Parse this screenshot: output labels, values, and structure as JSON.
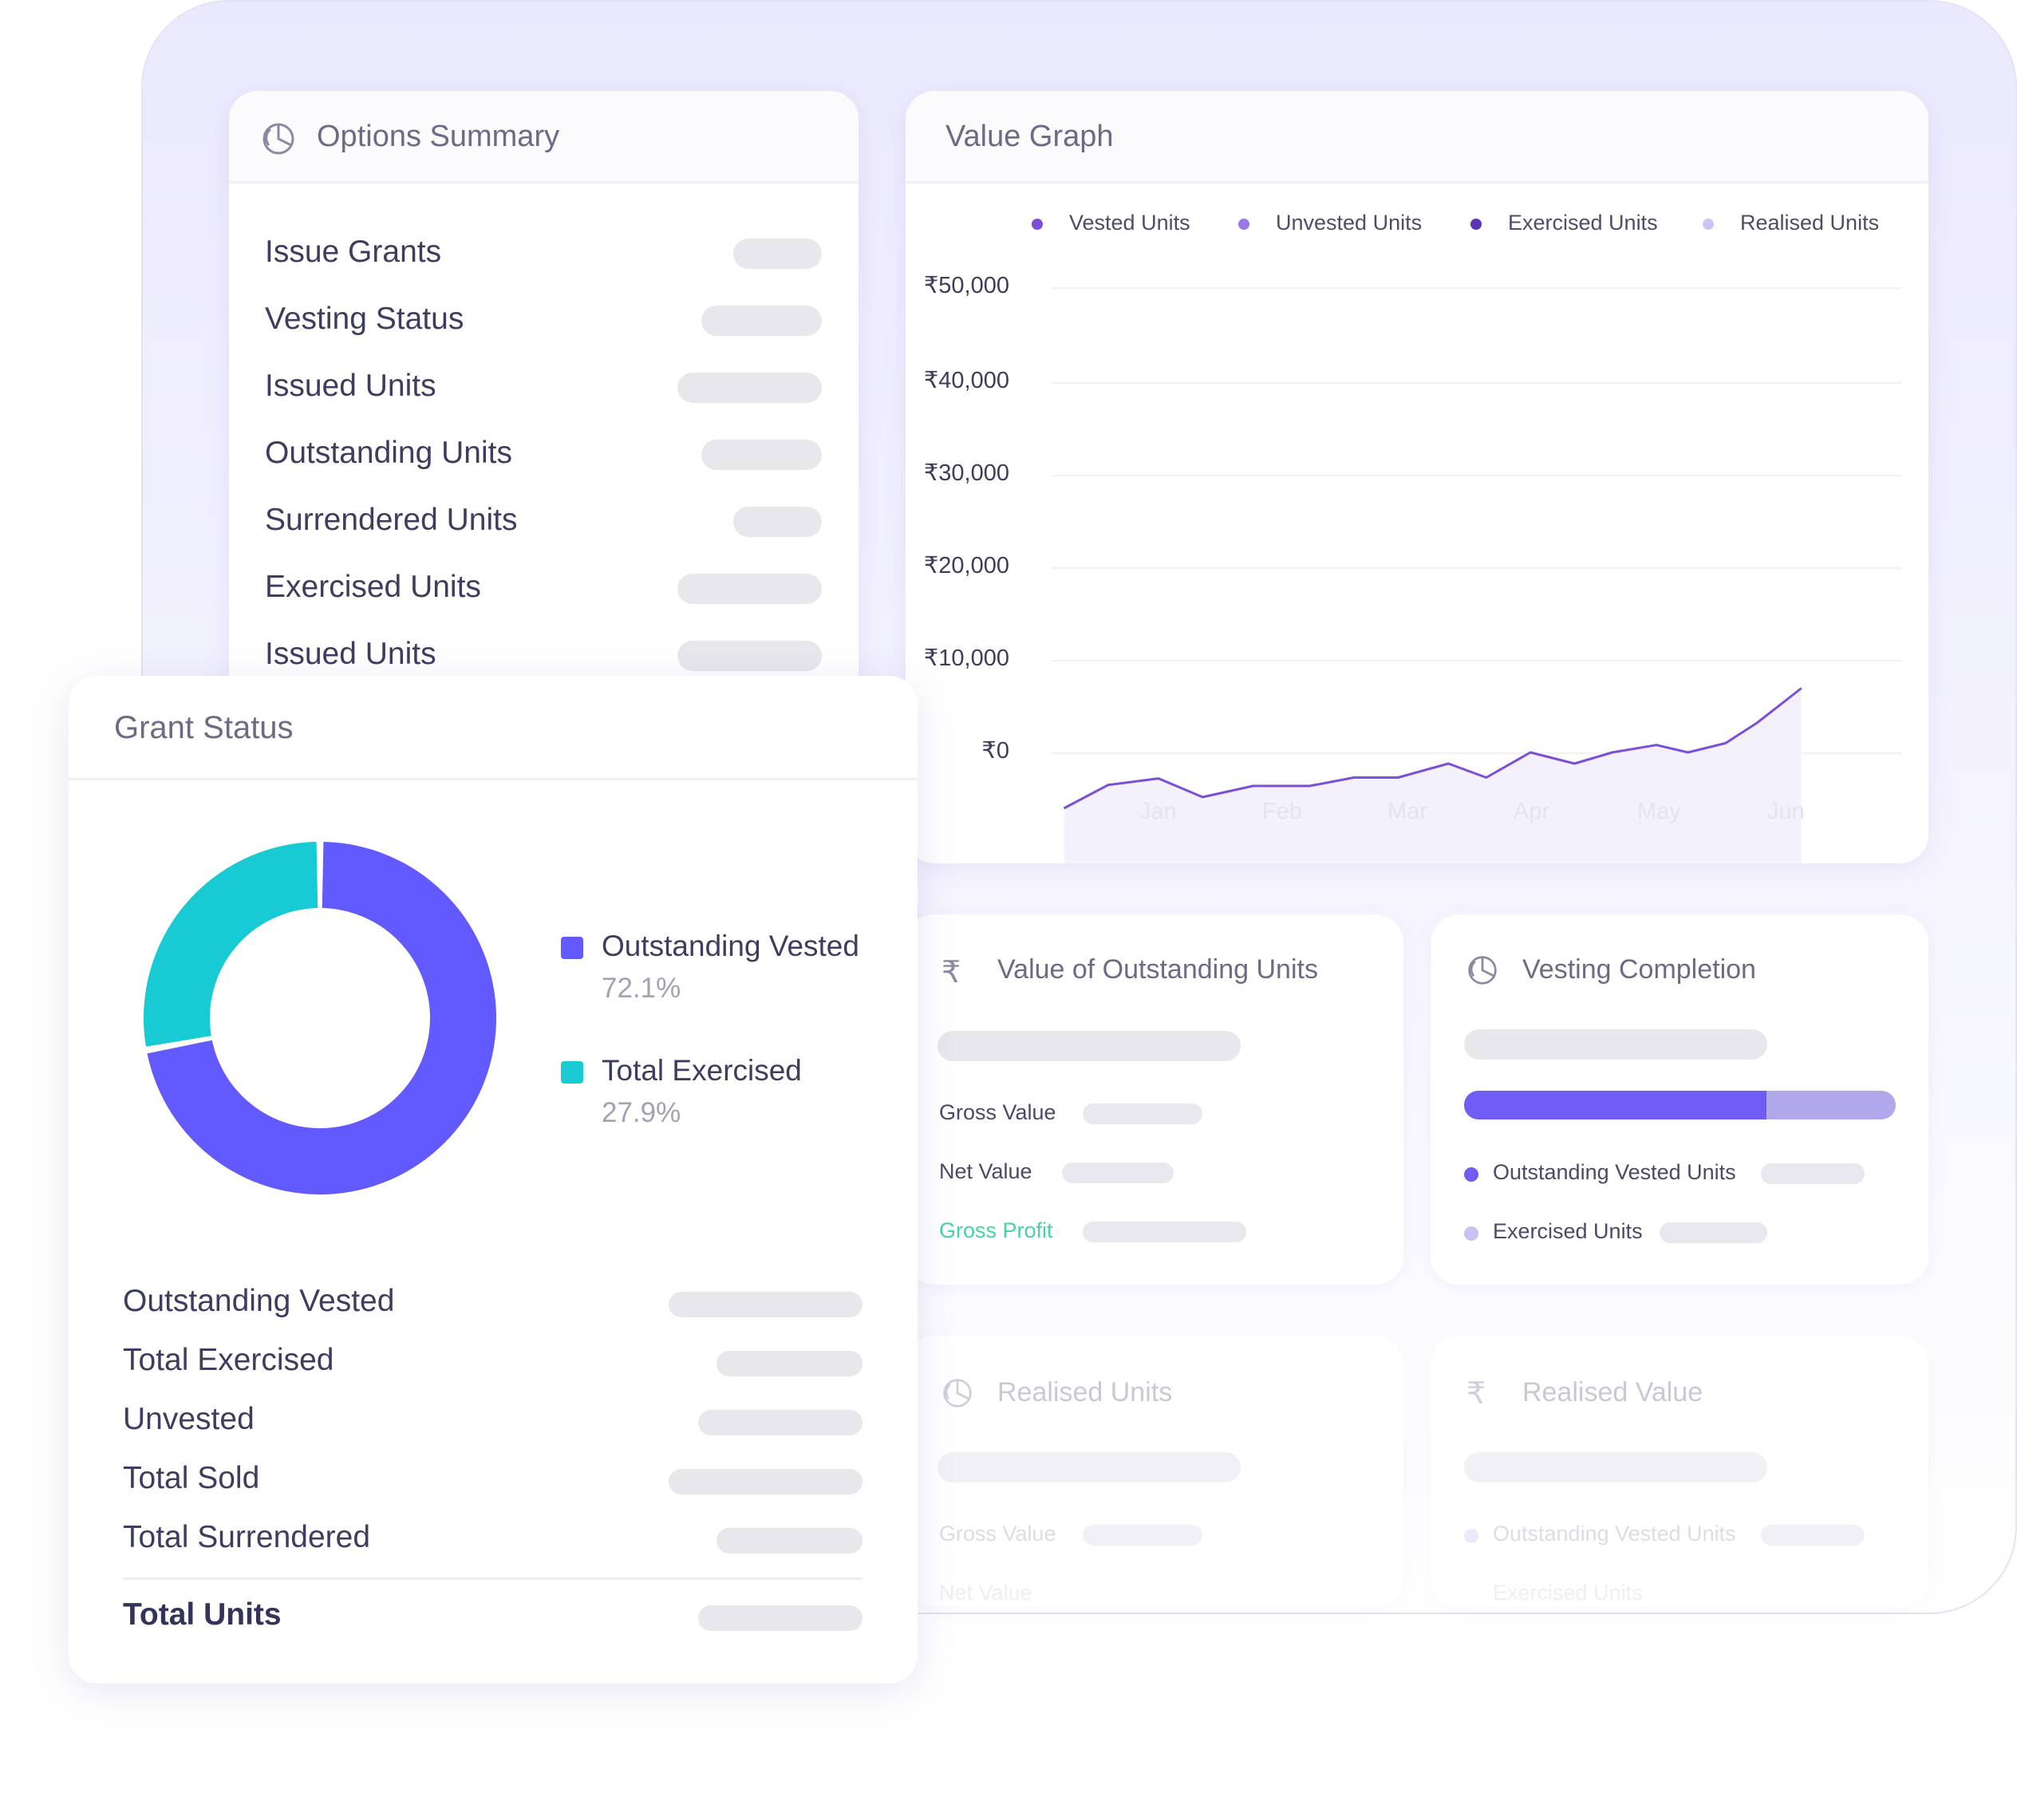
{
  "options_summary": {
    "title": "Options Summary",
    "icon": "pie-chart-icon",
    "rows": [
      {
        "label": "Issue Grants"
      },
      {
        "label": "Vesting Status"
      },
      {
        "label": "Issued Units"
      },
      {
        "label": "Outstanding Units"
      },
      {
        "label": "Surrendered Units"
      },
      {
        "label": "Exercised Units"
      },
      {
        "label": "Issued Units"
      }
    ]
  },
  "value_graph": {
    "title": "Value Graph",
    "legend": [
      {
        "name": "Vested Units",
        "color": "#7b4fd6"
      },
      {
        "name": "Unvested Units",
        "color": "#9a78e6"
      },
      {
        "name": "Exercised Units",
        "color": "#5b35b8"
      },
      {
        "name": "Realised Units",
        "color": "#d2c2f3"
      }
    ]
  },
  "chart_data": {
    "type": "area",
    "title": "Value Graph",
    "xlabel": "",
    "ylabel": "",
    "x_ticks": [
      "Jan",
      "Feb",
      "Mar",
      "Apr",
      "May",
      "Jun"
    ],
    "y_ticks": [
      "₹50,000",
      "₹40,000",
      "₹30,000",
      "₹20,000",
      "₹10,000",
      "₹0"
    ],
    "ylim": [
      0,
      50000
    ],
    "grid": true,
    "legend_position": "top",
    "series": [
      {
        "name": "Vested Units",
        "color": "#7b4fd6",
        "x": [
          0.25,
          0.6,
          1.0,
          1.35,
          1.75,
          2.2,
          2.55,
          2.9,
          3.3,
          3.6,
          3.95,
          4.3,
          4.6,
          4.95,
          5.2,
          5.5,
          5.75,
          6.1
        ],
        "values": [
          -6000,
          -3500,
          -2800,
          -4800,
          -3600,
          -3600,
          -2700,
          -2700,
          -1200,
          -2700,
          0,
          -1200,
          0,
          800,
          0,
          1000,
          3200,
          6900
        ]
      }
    ]
  },
  "grant_status": {
    "title": "Grant Status",
    "donut": [
      {
        "name": "Outstanding Vested",
        "percent": "72.1%",
        "value": 72.1,
        "color": "#6259ff"
      },
      {
        "name": "Total Exercised",
        "percent": "27.9%",
        "value": 27.9,
        "color": "#17cad3"
      }
    ],
    "rows": [
      {
        "label": "Outstanding Vested"
      },
      {
        "label": "Total Exercised"
      },
      {
        "label": "Unvested"
      },
      {
        "label": "Total Sold"
      },
      {
        "label": "Total Surrendered"
      }
    ],
    "total_label": "Total Units"
  },
  "value_outstanding": {
    "title": "Value of Outstanding Units",
    "icon": "rupee-icon",
    "rows": [
      {
        "label": "Gross Value",
        "color": "#4a4a66"
      },
      {
        "label": "Net Value",
        "color": "#4a4a66"
      },
      {
        "label": "Gross Profit",
        "color": "#46d3a0"
      }
    ]
  },
  "vesting_completion": {
    "title": "Vesting Completion",
    "icon": "pie-chart-icon",
    "progress": 0.7,
    "progress_color": "#6e5cf5",
    "remaining_color": "#b1a8ec",
    "legend": [
      {
        "label": "Outstanding Vested Units",
        "color": "#6e5cf5"
      },
      {
        "label": "Exercised Units",
        "color": "#c9c3f1"
      }
    ]
  },
  "realised_units": {
    "title": "Realised Units",
    "icon": "pie-chart-icon",
    "rows": [
      {
        "label": "Gross Value"
      },
      {
        "label": "Net Value"
      }
    ]
  },
  "realised_value": {
    "title": "Realised Value",
    "icon": "rupee-icon",
    "legend": [
      {
        "label": "Outstanding Vested Units"
      },
      {
        "label": "Exercised Units"
      }
    ]
  }
}
